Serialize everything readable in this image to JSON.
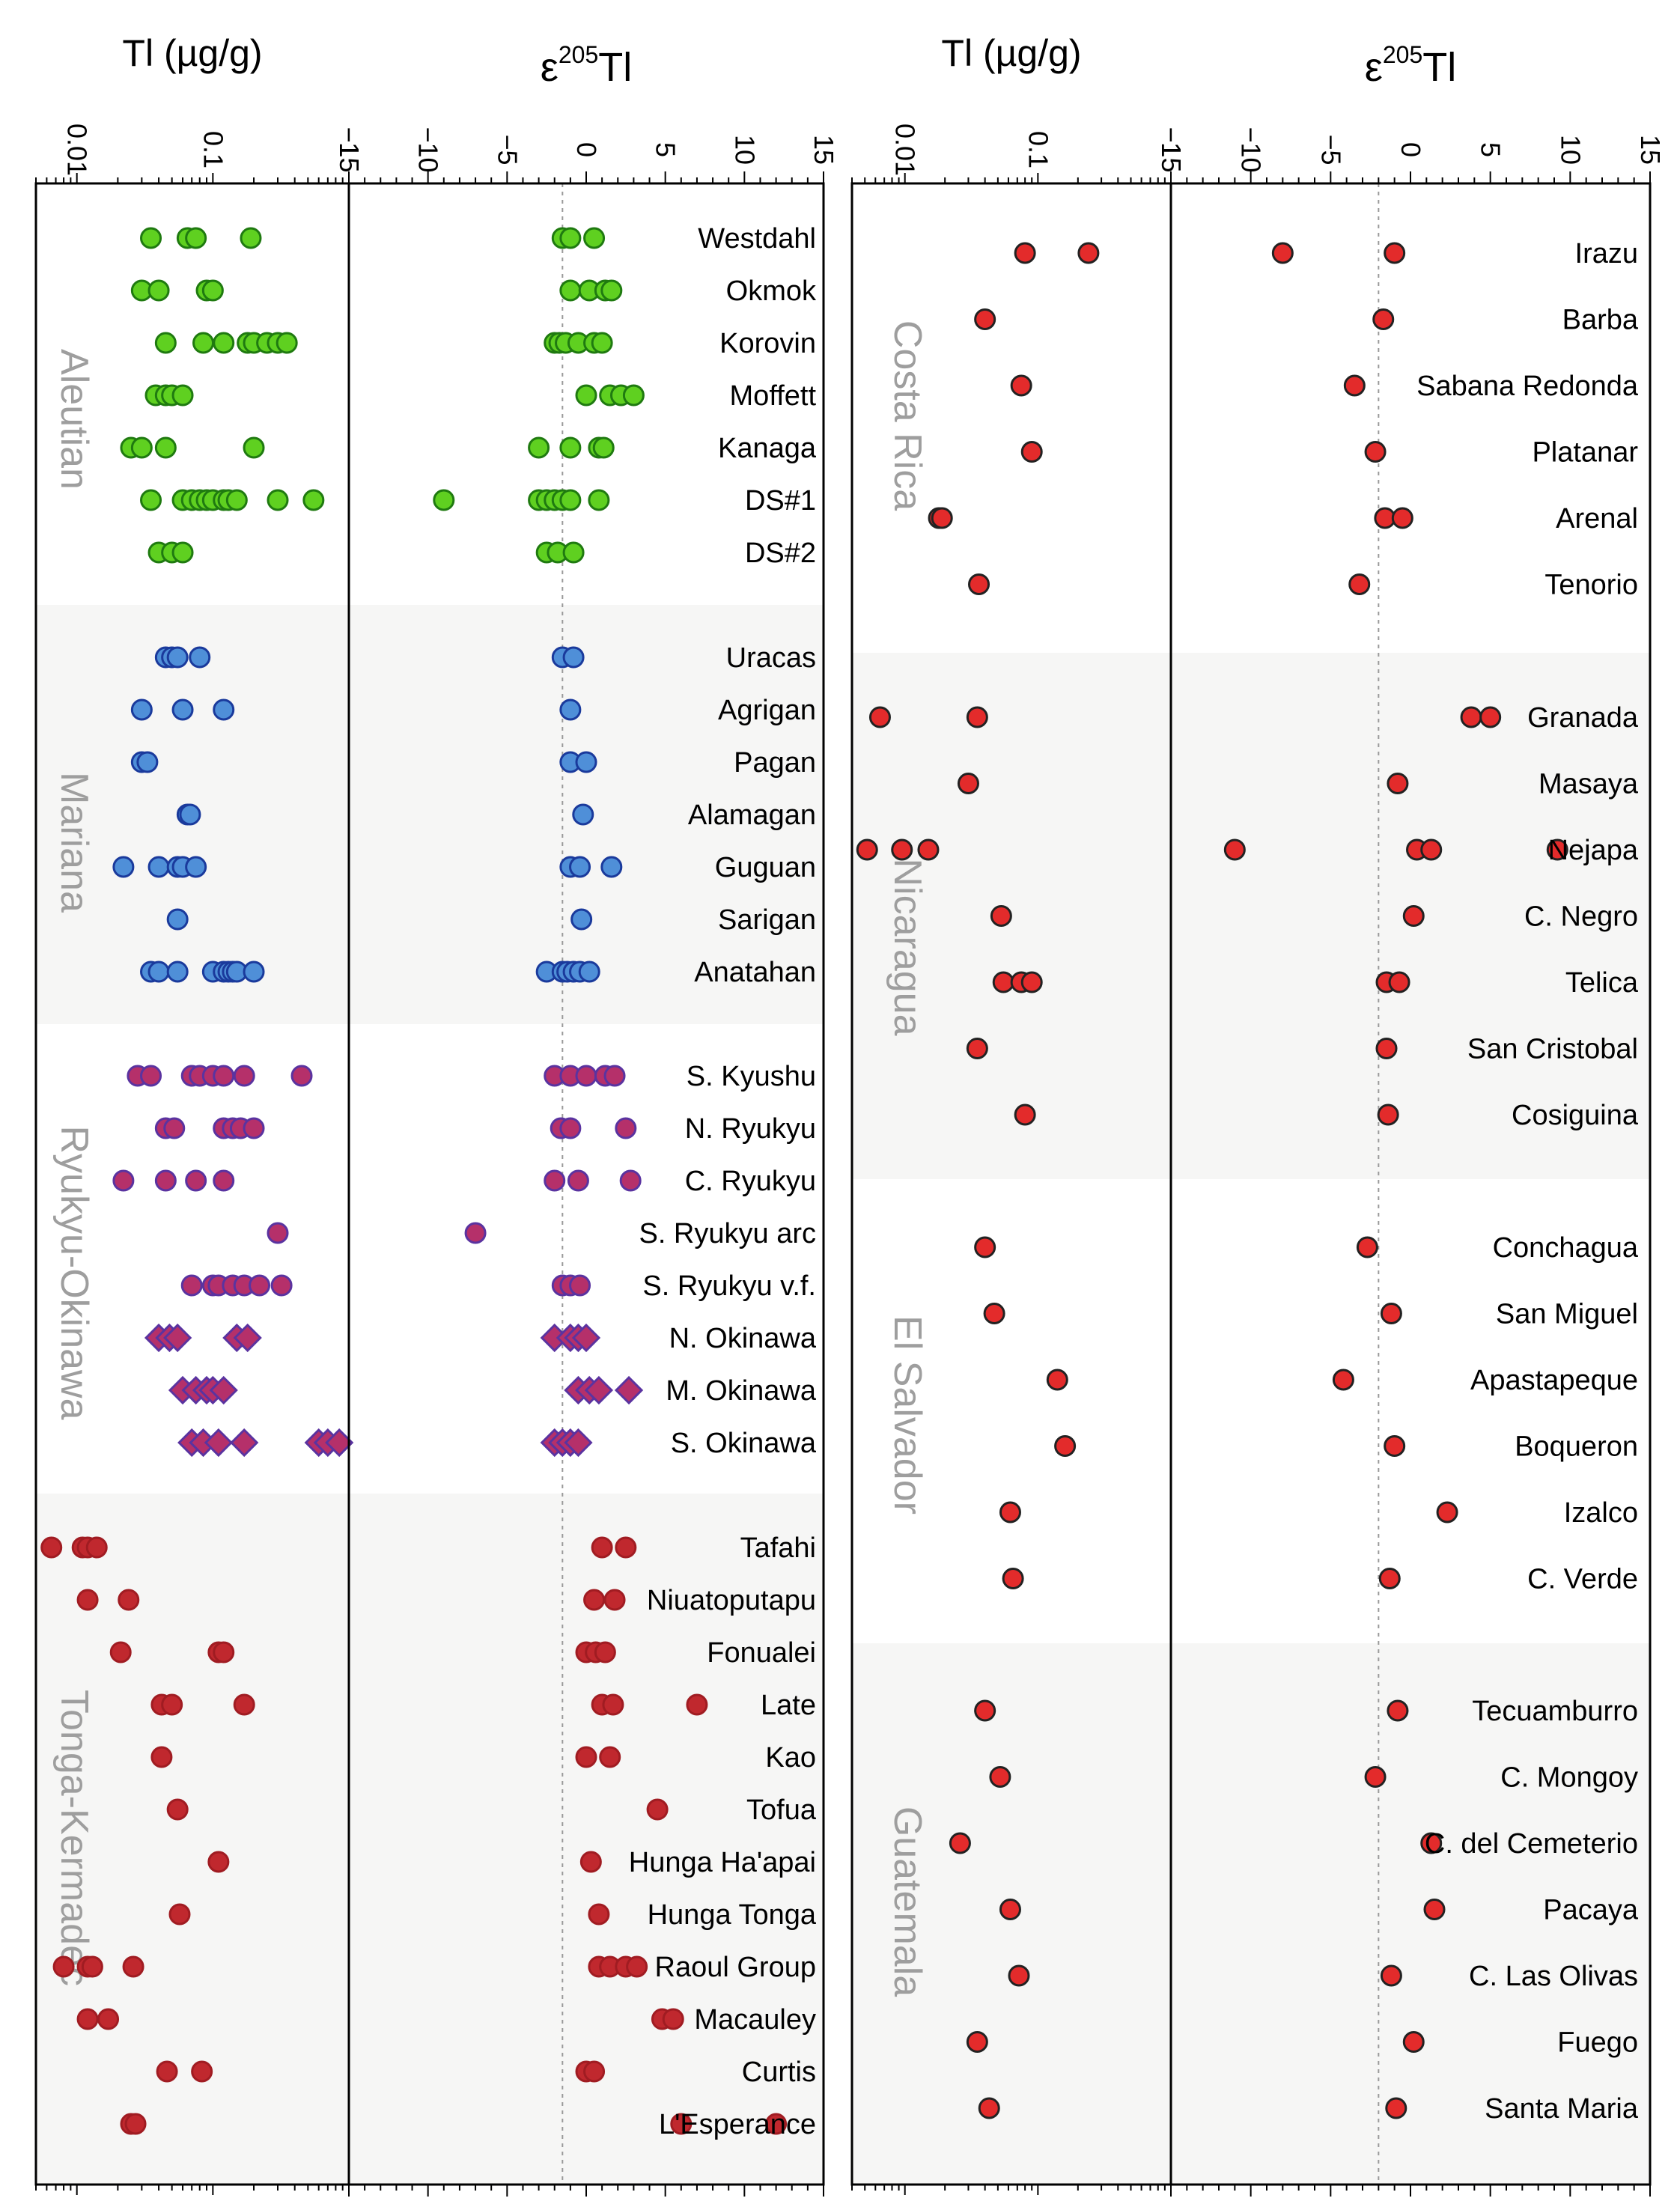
{
  "chart_data": [
    {
      "type": "scatter",
      "panel": "right",
      "axis_titles": {
        "tl": "Tl (µg/g)",
        "eps": "ε205Tl",
        "eps_sup": "205",
        "eps_main": "Tl"
      },
      "tl_axis": {
        "scale": "log",
        "range": [
          0.004,
          1
        ],
        "tick_values": [
          0.01,
          0.1,
          1
        ],
        "tick_labels": [
          "0.01",
          "0.1",
          "1"
        ]
      },
      "eps_axis": {
        "range": [
          -15,
          15
        ],
        "tick_values": [
          -15,
          -10,
          -5,
          0,
          5,
          10,
          15
        ],
        "tick_labels": [
          "−15",
          "−10",
          "−5",
          "0",
          "5",
          "10",
          "15"
        ],
        "reference_line": -2
      },
      "point_style": {
        "marker": "circle",
        "fill": "#e32b2b",
        "stroke": "#222222"
      },
      "groups": [
        {
          "name": "Costa Rica",
          "volcanoes": [
            {
              "name": "Irazu",
              "tl": [
                0.08,
                0.24
              ],
              "eps": [
                -8,
                -1
              ]
            },
            {
              "name": "Barba",
              "tl": [
                0.04
              ],
              "eps": [
                -1.7
              ]
            },
            {
              "name": "Sabana Redonda",
              "tl": [
                0.075
              ],
              "eps": [
                -3.5
              ]
            },
            {
              "name": "Platanar",
              "tl": [
                0.09
              ],
              "eps": [
                -2.2
              ]
            },
            {
              "name": "Arenal",
              "tl": [
                0.018,
                0.019
              ],
              "eps": [
                -1.6,
                -0.5
              ]
            },
            {
              "name": "Tenorio",
              "tl": [
                0.036
              ],
              "eps": [
                -3.2
              ]
            }
          ]
        },
        {
          "name": "Nicaragua",
          "volcanoes": [
            {
              "name": "Granada",
              "tl": [
                0.0065,
                0.035
              ],
              "eps": [
                3.8,
                5
              ]
            },
            {
              "name": "Masaya",
              "tl": [
                0.03
              ],
              "eps": [
                -0.8
              ]
            },
            {
              "name": "Nejapa",
              "tl": [
                0.0052,
                0.0095,
                0.015
              ],
              "eps": [
                -11,
                0.4,
                1.3,
                9.2
              ]
            },
            {
              "name": "C. Negro",
              "tl": [
                0.053
              ],
              "eps": [
                0.2
              ]
            },
            {
              "name": "Telica",
              "tl": [
                0.055,
                0.075,
                0.09
              ],
              "eps": [
                -1.5,
                -0.7
              ]
            },
            {
              "name": "San Cristobal",
              "tl": [
                0.035
              ],
              "eps": [
                -1.5
              ]
            },
            {
              "name": "Cosiguina",
              "tl": [
                0.08
              ],
              "eps": [
                -1.4
              ]
            }
          ]
        },
        {
          "name": "El Salvador",
          "volcanoes": [
            {
              "name": "Conchagua",
              "tl": [
                0.04
              ],
              "eps": [
                -2.7
              ]
            },
            {
              "name": "San Miguel",
              "tl": [
                0.047
              ],
              "eps": [
                -1.2
              ]
            },
            {
              "name": "Apastapeque",
              "tl": [
                0.14
              ],
              "eps": [
                -4.2
              ]
            },
            {
              "name": "Boqueron",
              "tl": [
                0.16
              ],
              "eps": [
                -1
              ]
            },
            {
              "name": "Izalco",
              "tl": [
                0.062
              ],
              "eps": [
                2.3
              ]
            },
            {
              "name": "C. Verde",
              "tl": [
                0.065
              ],
              "eps": [
                -1.3
              ]
            }
          ]
        },
        {
          "name": "Guatemala",
          "volcanoes": [
            {
              "name": "Tecuamburro",
              "tl": [
                0.04
              ],
              "eps": [
                -0.8
              ]
            },
            {
              "name": "C. Mongoy",
              "tl": [
                0.052
              ],
              "eps": [
                -2.2
              ]
            },
            {
              "name": "C. del Cemeterio",
              "tl": [
                0.026
              ],
              "eps": [
                1.3
              ]
            },
            {
              "name": "Pacaya",
              "tl": [
                0.062
              ],
              "eps": [
                1.5
              ]
            },
            {
              "name": "C. Las Olivas",
              "tl": [
                0.072
              ],
              "eps": [
                -1.2
              ]
            },
            {
              "name": "Fuego",
              "tl": [
                0.035
              ],
              "eps": [
                0.2
              ]
            },
            {
              "name": "Santa Maria",
              "tl": [
                0.043
              ],
              "eps": [
                -0.9
              ]
            }
          ]
        }
      ]
    },
    {
      "type": "scatter",
      "panel": "left",
      "axis_titles": {
        "tl": "Tl (µg/g)",
        "eps": "ε205Tl",
        "eps_sup": "205",
        "eps_main": "Tl"
      },
      "tl_axis": {
        "scale": "log",
        "range": [
          0.005,
          1
        ],
        "tick_values": [
          0.01,
          0.1,
          1
        ],
        "tick_labels": [
          "0.01",
          "0.1",
          "1"
        ]
      },
      "eps_axis": {
        "range": [
          -15,
          15
        ],
        "tick_values": [
          -15,
          -10,
          -5,
          0,
          5,
          10,
          15
        ],
        "tick_labels": [
          "−15",
          "−10",
          "−5",
          "0",
          "5",
          "10",
          "15"
        ],
        "reference_line": -1.5
      },
      "groups": [
        {
          "name": "Aleutian",
          "point_style": {
            "marker": "circle",
            "fill": "#5fd020",
            "stroke": "#1f7a10"
          },
          "volcanoes": [
            {
              "name": "Westdahl",
              "tl": [
                0.035,
                0.065,
                0.075,
                0.19
              ],
              "eps": [
                -1.5,
                -1,
                0.5
              ]
            },
            {
              "name": "Okmok",
              "tl": [
                0.03,
                0.04,
                0.09,
                0.1
              ],
              "eps": [
                -1,
                0.2,
                1.2,
                1.6
              ]
            },
            {
              "name": "Korovin",
              "tl": [
                0.045,
                0.085,
                0.12,
                0.18,
                0.2,
                0.25,
                0.3,
                0.35
              ],
              "eps": [
                -2,
                -1.7,
                -1.3,
                -0.5,
                0.5,
                1
              ]
            },
            {
              "name": "Moffett",
              "tl": [
                0.038,
                0.045,
                0.05,
                0.06
              ],
              "eps": [
                0,
                1.5,
                2.2,
                3
              ]
            },
            {
              "name": "Kanaga",
              "tl": [
                0.025,
                0.03,
                0.045,
                0.2
              ],
              "eps": [
                -3,
                -1,
                0.8,
                1.1
              ]
            },
            {
              "name": "DS#1",
              "tl": [
                0.035,
                0.06,
                0.07,
                0.08,
                0.09,
                0.1,
                0.12,
                0.13,
                0.15,
                0.3,
                0.55
              ],
              "eps": [
                -9,
                -3,
                -2.5,
                -2,
                -1.5,
                -1,
                0.8
              ]
            },
            {
              "name": "DS#2",
              "tl": [
                0.04,
                0.05,
                0.06
              ],
              "eps": [
                -2.5,
                -1.8,
                -0.8
              ]
            }
          ]
        },
        {
          "name": "Mariana",
          "point_style": {
            "marker": "circle",
            "fill": "#4f8fd8",
            "stroke": "#1a3a9c"
          },
          "volcanoes": [
            {
              "name": "Uracas",
              "tl": [
                0.045,
                0.05,
                0.055,
                0.08
              ],
              "eps": [
                -1.5,
                -0.8
              ]
            },
            {
              "name": "Agrigan",
              "tl": [
                0.03,
                0.06,
                0.12
              ],
              "eps": [
                -1
              ]
            },
            {
              "name": "Pagan",
              "tl": [
                0.03,
                0.033
              ],
              "eps": [
                -1,
                0
              ]
            },
            {
              "name": "Alamagan",
              "tl": [
                0.065,
                0.068
              ],
              "eps": [
                -0.2
              ]
            },
            {
              "name": "Guguan",
              "tl": [
                0.022,
                0.04,
                0.055,
                0.06,
                0.075
              ],
              "eps": [
                -1,
                -0.4,
                1.6
              ]
            },
            {
              "name": "Sarigan",
              "tl": [
                0.055
              ],
              "eps": [
                -0.3
              ]
            },
            {
              "name": "Anatahan",
              "tl": [
                0.035,
                0.04,
                0.055,
                0.1,
                0.12,
                0.13,
                0.14,
                0.15,
                0.2
              ],
              "eps": [
                -2.5,
                -1.5,
                -1.2,
                -0.8,
                -0.4,
                0.2
              ]
            }
          ]
        },
        {
          "name": "Ryukyu-Okinawa",
          "point_style": {
            "fill": "#b5306a",
            "stroke": "#5a33a0"
          },
          "volcanoes": [
            {
              "name": "S. Kyushu",
              "tl": [
                0.028,
                0.035,
                0.07,
                0.08,
                0.1,
                0.12,
                0.17,
                0.45
              ],
              "eps": [
                -2,
                -1,
                0,
                1.2,
                1.8
              ],
              "marker": "circle"
            },
            {
              "name": "N. Ryukyu",
              "tl": [
                0.045,
                0.052,
                0.12,
                0.14,
                0.16,
                0.2
              ],
              "eps": [
                -1.6,
                -1,
                2.5
              ],
              "marker": "circle"
            },
            {
              "name": "C. Ryukyu",
              "tl": [
                0.022,
                0.045,
                0.075,
                0.12
              ],
              "eps": [
                -2,
                -0.5,
                2.8
              ],
              "marker": "circle"
            },
            {
              "name": "S. Ryukyu arc",
              "tl": [
                0.3
              ],
              "eps": [
                -7
              ],
              "marker": "circle"
            },
            {
              "name": "S. Ryukyu v.f.",
              "tl": [
                0.07,
                0.1,
                0.11,
                0.14,
                0.17,
                0.22,
                0.32
              ],
              "eps": [
                -1.5,
                -1,
                -0.4
              ],
              "marker": "circle"
            },
            {
              "name": "N. Okinawa",
              "tl": [
                0.04,
                0.048,
                0.055,
                0.15,
                0.18
              ],
              "eps": [
                -2,
                -1,
                -0.5,
                0
              ],
              "marker": "diamond"
            },
            {
              "name": "M. Okinawa",
              "tl": [
                0.06,
                0.075,
                0.09,
                0.1,
                0.12
              ],
              "eps": [
                -0.5,
                0.2,
                0.8,
                2.7
              ],
              "marker": "diamond"
            },
            {
              "name": "S. Okinawa",
              "tl": [
                0.07,
                0.085,
                0.11,
                0.17,
                0.6,
                0.7,
                0.85
              ],
              "eps": [
                -2,
                -1.5,
                -1,
                -0.5
              ],
              "marker": "diamond"
            }
          ]
        },
        {
          "name": "Tonga-Kermadec",
          "point_style": {
            "marker": "circle",
            "fill": "#c0282e",
            "stroke": "#a01c22"
          },
          "volcanoes": [
            {
              "name": "Tafahi",
              "tl": [
                0.0065,
                0.011,
                0.012,
                0.014
              ],
              "eps": [
                1,
                2.5
              ]
            },
            {
              "name": "Niuatoputapu",
              "tl": [
                0.012,
                0.024
              ],
              "eps": [
                0.5,
                1.8
              ]
            },
            {
              "name": "Fonualei",
              "tl": [
                0.021,
                0.11,
                0.12
              ],
              "eps": [
                0,
                0.6,
                1.2
              ]
            },
            {
              "name": "Late",
              "tl": [
                0.042,
                0.05,
                0.17
              ],
              "eps": [
                1,
                1.7,
                7
              ]
            },
            {
              "name": "Kao",
              "tl": [
                0.042
              ],
              "eps": [
                0,
                1.5
              ]
            },
            {
              "name": "Tofua",
              "tl": [
                0.055
              ],
              "eps": [
                4.5
              ]
            },
            {
              "name": "Hunga Ha'apai",
              "tl": [
                0.11
              ],
              "eps": [
                0.3
              ]
            },
            {
              "name": "Hunga Tonga",
              "tl": [
                0.057
              ],
              "eps": [
                0.8
              ]
            },
            {
              "name": "Raoul Group",
              "tl": [
                0.008,
                0.012,
                0.013,
                0.026
              ],
              "eps": [
                0.8,
                1.5,
                2.5,
                3.2
              ]
            },
            {
              "name": "Macauley",
              "tl": [
                0.012,
                0.017
              ],
              "eps": [
                4.8,
                5.5
              ]
            },
            {
              "name": "Curtis",
              "tl": [
                0.046,
                0.083
              ],
              "eps": [
                0,
                0.5
              ]
            },
            {
              "name": "L'Esperance",
              "tl": [
                0.025,
                0.027
              ],
              "eps": [
                6,
                12
              ]
            }
          ]
        }
      ]
    }
  ]
}
